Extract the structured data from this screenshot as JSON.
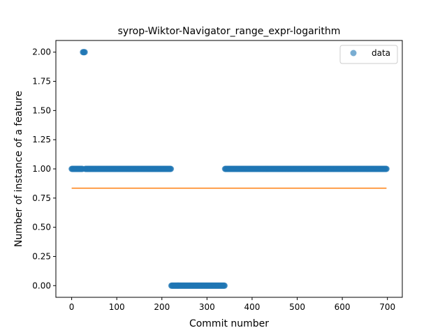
{
  "chart_data": {
    "type": "scatter",
    "title": "syrop-Wiktor-Navigator_range_expr-logarithm",
    "xlabel": "Commit number",
    "ylabel": "Number of instance of a feature",
    "xlim": [
      -35,
      733
    ],
    "ylim": [
      -0.1,
      2.1
    ],
    "x_ticks": [
      "0",
      "100",
      "200",
      "300",
      "400",
      "500",
      "600",
      "700"
    ],
    "y_ticks": [
      "0.00",
      "0.25",
      "0.50",
      "0.75",
      "1.00",
      "1.25",
      "1.50",
      "1.75",
      "2.00"
    ],
    "grid": false,
    "legend_position": "top-right",
    "scatter_color": "#1f77b4",
    "line_color": "#ff7f0e",
    "series": [
      {
        "name": "data",
        "kind": "points",
        "segments": [
          {
            "x_start": 0,
            "x_end": 24,
            "y": 1.0
          },
          {
            "x_start": 25,
            "x_end": 29,
            "y": 2.0
          },
          {
            "x_start": 30,
            "x_end": 220,
            "y": 1.0
          },
          {
            "x_start": 221,
            "x_end": 339,
            "y": 0.0
          },
          {
            "x_start": 340,
            "x_end": 698,
            "y": 1.0
          }
        ]
      },
      {
        "kind": "line",
        "x": [
          0,
          698
        ],
        "y": [
          0.835,
          0.835
        ]
      }
    ],
    "legend": [
      {
        "label": "data"
      }
    ]
  }
}
